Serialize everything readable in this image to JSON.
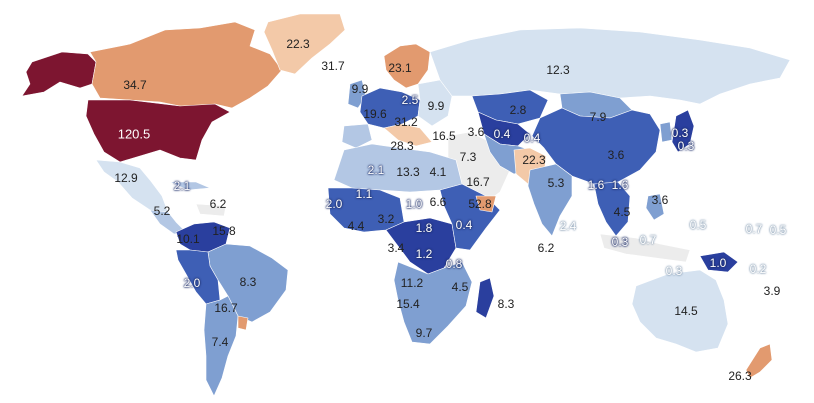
{
  "legend_colors": {
    "very_low": "#2a3f9e",
    "low": "#3e5fb5",
    "mid_low": "#7f9fd1",
    "mid": "#b3c7e4",
    "light": "#d5e2f0",
    "neutral": "#ececec",
    "warm_light": "#f3c9a8",
    "warm": "#e29a6f",
    "hot": "#7d1530"
  },
  "labels": [
    {
      "text": "22.3",
      "style": "plain"
    },
    {
      "text": "31.7",
      "style": "plain"
    },
    {
      "text": "23.1",
      "style": "plain"
    },
    {
      "text": "12.3",
      "style": "plain"
    },
    {
      "text": "34.7",
      "style": "plain"
    },
    {
      "text": "9.9",
      "style": "plain"
    },
    {
      "text": "2.5",
      "style": "halo"
    },
    {
      "text": "9.9",
      "style": "plain"
    },
    {
      "text": "19.6",
      "style": "plain"
    },
    {
      "text": "31.2",
      "style": "plain"
    },
    {
      "text": "2.8",
      "style": "plain"
    },
    {
      "text": "7.9",
      "style": "plain"
    },
    {
      "text": "120.5",
      "style": "dark"
    },
    {
      "text": "16.5",
      "style": "plain"
    },
    {
      "text": "3.6",
      "style": "plain"
    },
    {
      "text": "0.4",
      "style": "halo"
    },
    {
      "text": "0.4",
      "style": "halo"
    },
    {
      "text": "0.3",
      "style": "halo"
    },
    {
      "text": "0.3",
      "style": "halo"
    },
    {
      "text": "28.3",
      "style": "plain"
    },
    {
      "text": "7.3",
      "style": "plain"
    },
    {
      "text": "22.3",
      "style": "plain"
    },
    {
      "text": "3.6",
      "style": "plain"
    },
    {
      "text": "12.9",
      "style": "plain"
    },
    {
      "text": "2.1",
      "style": "halo"
    },
    {
      "text": "13.3",
      "style": "plain"
    },
    {
      "text": "4.1",
      "style": "plain"
    },
    {
      "text": "16.7",
      "style": "plain"
    },
    {
      "text": "5.3",
      "style": "plain"
    },
    {
      "text": "1.6",
      "style": "halo"
    },
    {
      "text": "1.6",
      "style": "halo"
    },
    {
      "text": "2.1",
      "style": "halo"
    },
    {
      "text": "6.2",
      "style": "plain"
    },
    {
      "text": "1.1",
      "style": "halo"
    },
    {
      "text": "2.0",
      "style": "halo"
    },
    {
      "text": "1.0",
      "style": "halo"
    },
    {
      "text": "6.6",
      "style": "plain"
    },
    {
      "text": "52.8",
      "style": "plain"
    },
    {
      "text": "3.6",
      "style": "plain"
    },
    {
      "text": "5.2",
      "style": "plain"
    },
    {
      "text": "4.5",
      "style": "plain"
    },
    {
      "text": "15.8",
      "style": "plain"
    },
    {
      "text": "4.4",
      "style": "plain"
    },
    {
      "text": "3.2",
      "style": "plain"
    },
    {
      "text": "1.8",
      "style": "halo"
    },
    {
      "text": "0.4",
      "style": "halo"
    },
    {
      "text": "2.4",
      "style": "ghost"
    },
    {
      "text": "0.3",
      "style": "halo"
    },
    {
      "text": "0.7",
      "style": "ghost"
    },
    {
      "text": "0.5",
      "style": "ghost"
    },
    {
      "text": "0.7",
      "style": "ghost"
    },
    {
      "text": "0.5",
      "style": "ghost"
    },
    {
      "text": "10.1",
      "style": "plain"
    },
    {
      "text": "3.4",
      "style": "plain"
    },
    {
      "text": "1.2",
      "style": "halo"
    },
    {
      "text": "6.2",
      "style": "plain"
    },
    {
      "text": "0.8",
      "style": "halo"
    },
    {
      "text": "8.3",
      "style": "plain"
    },
    {
      "text": "1.0",
      "style": "halo"
    },
    {
      "text": "0.2",
      "style": "ghost"
    },
    {
      "text": "0.3",
      "style": "ghost"
    },
    {
      "text": "11.2",
      "style": "plain"
    },
    {
      "text": "2.0",
      "style": "halo"
    },
    {
      "text": "4.5",
      "style": "plain"
    },
    {
      "text": "3.9",
      "style": "plain"
    },
    {
      "text": "8.3",
      "style": "plain"
    },
    {
      "text": "15.4",
      "style": "plain"
    },
    {
      "text": "16.7",
      "style": "plain"
    },
    {
      "text": "14.5",
      "style": "plain"
    },
    {
      "text": "9.7",
      "style": "plain"
    },
    {
      "text": "7.4",
      "style": "plain"
    },
    {
      "text": "26.3",
      "style": "plain"
    }
  ]
}
